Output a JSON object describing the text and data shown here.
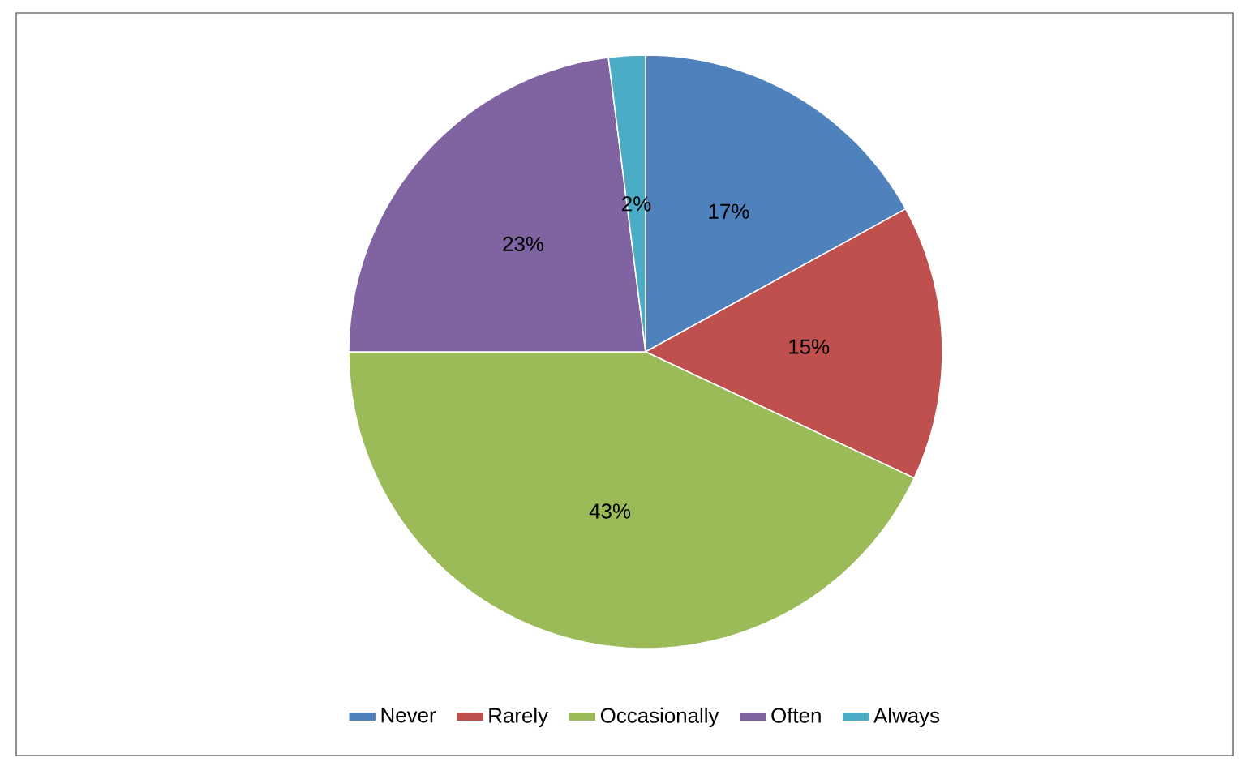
{
  "chart_data": {
    "type": "pie",
    "categories": [
      "Never",
      "Rarely",
      "Occasionally",
      "Often",
      "Always"
    ],
    "values": [
      17,
      15,
      43,
      23,
      2
    ],
    "colors": [
      "#4f81bd",
      "#c0504d",
      "#9bbb59",
      "#8064a2",
      "#4bacc6"
    ],
    "value_labels": [
      "17%",
      "15%",
      "43%",
      "23%",
      "2%"
    ],
    "legend": "bottom"
  }
}
